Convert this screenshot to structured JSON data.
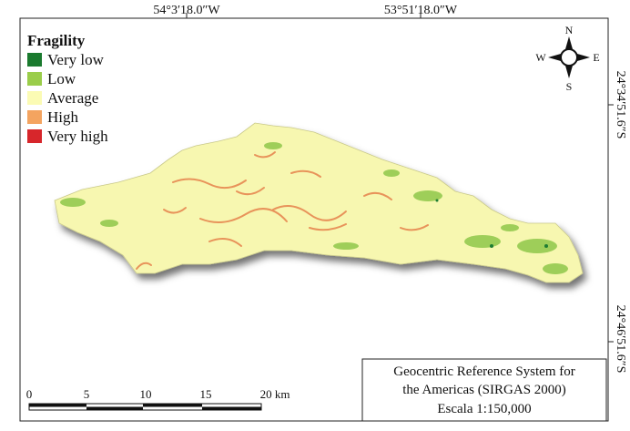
{
  "coordinates": {
    "top": [
      "54°3′18.0″W",
      "53°51′18.0″W"
    ],
    "right": [
      "24°34′51.6″S",
      "24°46′51.6″S"
    ]
  },
  "legend": {
    "title": "Fragility",
    "items": [
      {
        "label": "Very low",
        "color": "#1a7a2e"
      },
      {
        "label": "Low",
        "color": "#9acd4a"
      },
      {
        "label": "Average",
        "color": "#fbfbb4"
      },
      {
        "label": "High",
        "color": "#f4a460"
      },
      {
        "label": "Very high",
        "color": "#d7262b"
      }
    ]
  },
  "compass": {
    "north": "N",
    "south": "S",
    "west": "W",
    "east": "E"
  },
  "scale_bar": {
    "labels": [
      "0",
      "5",
      "10",
      "15",
      "20 km"
    ]
  },
  "info_box": {
    "lines": [
      "Geocentric Reference System for",
      "the Americas  (SIRGAS 2000)",
      "Escala 1:150,000"
    ]
  }
}
